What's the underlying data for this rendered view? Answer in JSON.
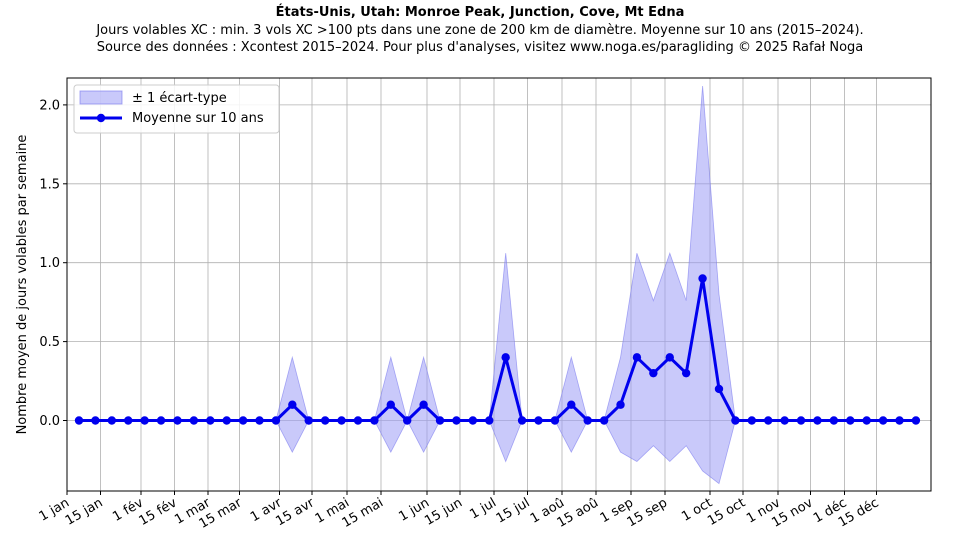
{
  "chart_data": {
    "type": "line",
    "title": "États-Unis, Utah: Monroe Peak, Junction, Cove, Mt Edna",
    "subtitle_lines": [
      "Jours volables XC : min. 3 vols XC >100 pts dans une zone de 200 km de diamètre. Moyenne sur 10 ans (2015–2024).",
      "Source des données : Xcontest 2015–2024. Pour plus d'analyses, visitez www.noga.es/paragliding © 2025 Rafał Noga"
    ],
    "xlabel": "",
    "ylabel": "Nombre moyen de jours volables par semaine",
    "x_ticks": [
      "1 jan",
      "15 jan",
      "1 fév",
      "15 fév",
      "1 mar",
      "15 mar",
      "1 avr",
      "15 avr",
      "1 mai",
      "15 mai",
      "1 jun",
      "15 jun",
      "1 jul",
      "15 jul",
      "1 aoû",
      "15 aoû",
      "1 sep",
      "15 sep",
      "1 oct",
      "15 oct",
      "1 nov",
      "15 nov",
      "1 déc",
      "15 déc"
    ],
    "y_ticks": [
      "0.0",
      "0.5",
      "1.0",
      "1.5",
      "2.0"
    ],
    "ylim": [
      -0.45,
      2.18
    ],
    "grid": true,
    "legend_position": "top-left",
    "legend": {
      "band_label": "± 1 écart-type",
      "line_label": "Moyenne sur 10 ans"
    },
    "colors": {
      "line": "#0000ee",
      "band_fill": "#9d9df5",
      "band_edge": "#7878ee",
      "grid": "#b0b0b0"
    },
    "series": [
      {
        "name": "Moyenne sur 10 ans",
        "values": [
          0,
          0,
          0,
          0,
          0,
          0,
          0,
          0,
          0,
          0,
          0,
          0,
          0,
          0.1,
          0,
          0,
          0,
          0,
          0,
          0.1,
          0,
          0.1,
          0,
          0,
          0,
          0,
          0.4,
          0,
          0,
          0,
          0.1,
          0,
          0,
          0.1,
          0.4,
          0.3,
          0.4,
          0.3,
          0.9,
          0.2,
          0,
          0,
          0,
          0,
          0,
          0,
          0,
          0,
          0,
          0,
          0,
          0
        ]
      },
      {
        "name": "± 1 écart-type",
        "std": [
          0,
          0,
          0,
          0,
          0,
          0,
          0,
          0,
          0,
          0,
          0,
          0,
          0,
          0.3,
          0,
          0,
          0,
          0,
          0,
          0.3,
          0,
          0.3,
          0,
          0,
          0,
          0,
          0.66,
          0,
          0,
          0,
          0.3,
          0,
          0,
          0.3,
          0.66,
          0.46,
          0.66,
          0.46,
          1.22,
          0.6,
          0,
          0,
          0,
          0,
          0,
          0,
          0,
          0,
          0,
          0,
          0,
          0
        ]
      }
    ]
  }
}
